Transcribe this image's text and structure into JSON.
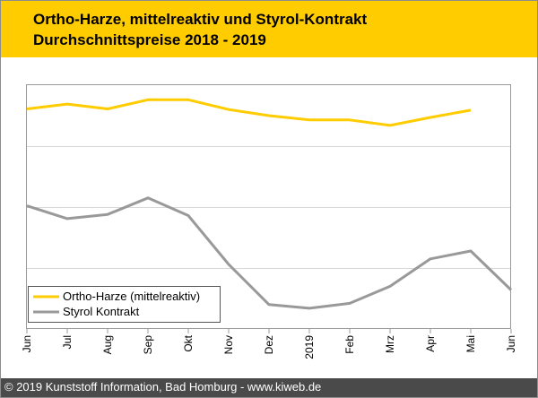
{
  "title": {
    "line1": "Ortho-Harze, mittelreaktiv und Styrol-Kontrakt",
    "line2": "Durchschnittspreise 2018 - 2019"
  },
  "footer": {
    "text": "© 2019 Kunststoff Information, Bad Homburg - www.kiweb.de"
  },
  "colors": {
    "header_bg": "#ffcc00",
    "ortho": "#ffcc00",
    "styrol": "#999999",
    "footer_bg": "#4a4a4a"
  },
  "chart_data": {
    "type": "line",
    "categories": [
      "Jun",
      "Jul",
      "Aug",
      "Sep",
      "Okt",
      "Nov",
      "Dez",
      "2019",
      "Feb",
      "Mrz",
      "Apr",
      "Mai",
      "Jun"
    ],
    "series": [
      {
        "name": "Ortho-Harze (mittelreaktiv)",
        "values": [
          3.61,
          3.69,
          3.61,
          3.76,
          3.76,
          3.6,
          3.5,
          3.43,
          3.43,
          3.34,
          3.47,
          3.59,
          null
        ],
        "color": "#ffcc00"
      },
      {
        "name": "Styrol Kontrakt",
        "values": [
          2.02,
          1.81,
          1.88,
          2.15,
          1.86,
          1.06,
          0.4,
          0.34,
          0.42,
          0.7,
          1.15,
          1.28,
          0.64
        ],
        "color": "#999999"
      }
    ],
    "ylim": [
      0,
      4
    ],
    "gridlines": [
      1,
      2,
      3
    ],
    "legend_position": "bottom-left",
    "grid": true
  }
}
